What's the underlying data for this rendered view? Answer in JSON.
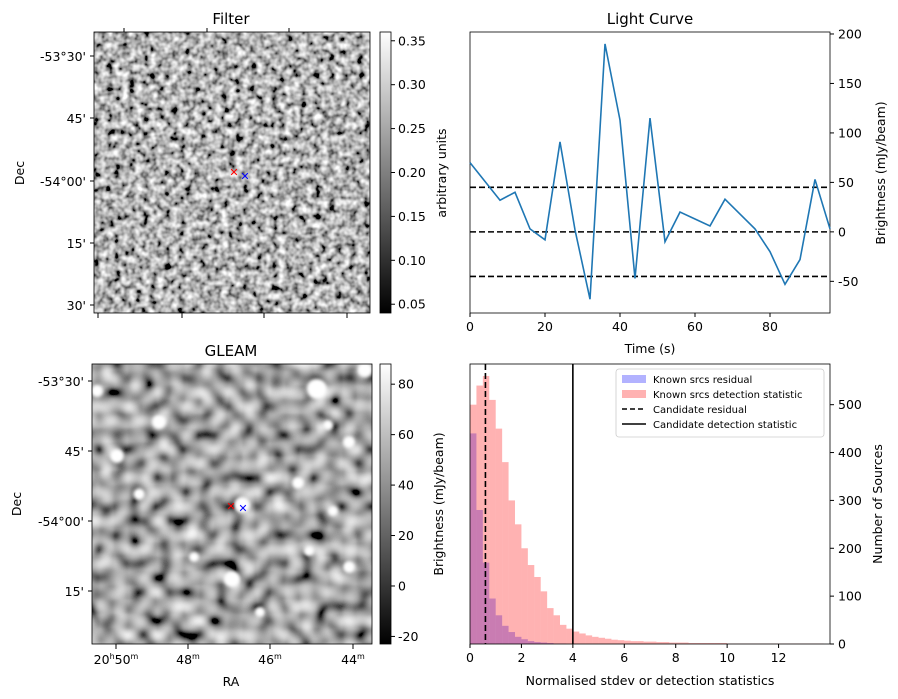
{
  "chart_data": [
    {
      "type": "heatmap",
      "title": "Filter",
      "xlabel": "",
      "ylabel": "Dec",
      "ytick_labels": [
        "-53°30'",
        "45'",
        "-54°00'",
        "15'",
        "30'"
      ],
      "colorbar": {
        "label": "arbitrary units",
        "range": [
          0.04,
          0.36
        ],
        "tick_labels": [
          "0.05",
          "0.10",
          "0.15",
          "0.20",
          "0.25",
          "0.30",
          "0.35"
        ],
        "colormap": "gray"
      },
      "markers": [
        {
          "symbol": "x",
          "color": "#ff0000"
        },
        {
          "symbol": "x",
          "color": "#0000ff"
        }
      ]
    },
    {
      "type": "line",
      "title": "Light Curve",
      "xlabel": "Time (s)",
      "ylabel": "Brightness (mJy/beam)",
      "xlim": [
        0,
        96
      ],
      "ylim": [
        -82,
        202
      ],
      "xtick_labels": [
        "0",
        "20",
        "40",
        "60",
        "80"
      ],
      "ytick_labels": [
        "-50",
        "0",
        "50",
        "100",
        "150",
        "200"
      ],
      "y_axis_side": "right",
      "series": [
        {
          "color": "#1f77b4",
          "x": [
            0,
            8,
            12,
            16,
            20,
            24,
            28,
            32,
            36,
            40,
            44,
            48,
            52,
            56,
            60,
            64,
            68,
            72,
            76,
            80,
            84,
            88,
            92,
            96
          ],
          "y": [
            70,
            32,
            40,
            3,
            -8,
            91,
            2,
            -68,
            190,
            113,
            -47,
            115,
            -10,
            20,
            13,
            6,
            33,
            18,
            3,
            -20,
            -53,
            -28,
            53,
            3
          ]
        }
      ],
      "hlines": [
        {
          "y": 45,
          "style": "dashed",
          "color": "#000000"
        },
        {
          "y": 0,
          "style": "dashed",
          "color": "#000000"
        },
        {
          "y": -45,
          "style": "dashed",
          "color": "#000000"
        }
      ],
      "grid": false
    },
    {
      "type": "heatmap",
      "title": "GLEAM",
      "xlabel": "RA",
      "ylabel": "Dec",
      "xtick_labels": [
        "20h50m",
        "48m",
        "46m",
        "44m"
      ],
      "ytick_labels": [
        "-53°30'",
        "45'",
        "-54°00'",
        "15'"
      ],
      "colorbar": {
        "label": "Brightness (mJy/beam)",
        "range": [
          -23,
          88
        ],
        "tick_labels": [
          "-20",
          "0",
          "20",
          "40",
          "60",
          "80"
        ],
        "colormap": "gray"
      },
      "markers": [
        {
          "symbol": "x",
          "color": "#ff0000"
        },
        {
          "symbol": "x",
          "color": "#0000ff"
        }
      ]
    },
    {
      "type": "bar",
      "subtype": "histogram",
      "title": "",
      "xlabel": "Normalised stdev or detection statistics",
      "ylabel": "Number of Sources",
      "y_axis_side": "right",
      "xlim": [
        0,
        14
      ],
      "ylim": [
        0,
        585
      ],
      "xtick_labels": [
        "0",
        "2",
        "4",
        "6",
        "8",
        "10",
        "12"
      ],
      "ytick_labels": [
        "0",
        "100",
        "200",
        "300",
        "400",
        "500"
      ],
      "legend_position": "top-right",
      "bin_width": 0.25,
      "series": [
        {
          "name": "Known srcs residual",
          "color": "#0000ff",
          "alpha": 0.3,
          "bin_starts": [
            0,
            0.25,
            0.5,
            0.75,
            1.0,
            1.25,
            1.5,
            1.75,
            2.0,
            2.25,
            2.5,
            2.75,
            3.0,
            3.25,
            3.5
          ],
          "counts": [
            440,
            280,
            170,
            95,
            60,
            38,
            25,
            15,
            10,
            6,
            4,
            3,
            2,
            1,
            1
          ]
        },
        {
          "name": "Known srcs detection statistic",
          "color": "#ff0000",
          "alpha": 0.3,
          "bin_starts": [
            0,
            0.25,
            0.5,
            0.75,
            1.0,
            1.25,
            1.5,
            1.75,
            2.0,
            2.25,
            2.5,
            2.75,
            3.0,
            3.25,
            3.5,
            3.75,
            4.0,
            4.25,
            4.5,
            4.75,
            5.0,
            5.25,
            5.5,
            5.75,
            6.0,
            6.25,
            6.5,
            6.75,
            7.0,
            7.25,
            7.5,
            7.75,
            8.0,
            8.25,
            8.5,
            8.75,
            9.0,
            9.25,
            9.5,
            9.75,
            10.0,
            10.25,
            10.5,
            10.75,
            11.0,
            11.25,
            11.5,
            11.75,
            12.0,
            12.25,
            12.5,
            12.75,
            13.0,
            13.25,
            13.5
          ],
          "counts": [
            500,
            540,
            560,
            510,
            450,
            380,
            300,
            250,
            200,
            165,
            140,
            110,
            75,
            60,
            40,
            32,
            26,
            22,
            18,
            15,
            13,
            11,
            9,
            8,
            7,
            6,
            6,
            5,
            5,
            4,
            4,
            3,
            3,
            3,
            2,
            2,
            2,
            2,
            2,
            2,
            1,
            1,
            1,
            1,
            1,
            1,
            1,
            1,
            1,
            1,
            1,
            1,
            1,
            1,
            1
          ]
        }
      ],
      "vlines": [
        {
          "name": "Candidate residual",
          "x": 0.6,
          "style": "dashed",
          "color": "#000000"
        },
        {
          "name": "Candidate detection statistic",
          "x": 4.0,
          "style": "solid",
          "color": "#000000"
        }
      ],
      "secondary_ylabel": "Brightness (mJy/beam)"
    }
  ]
}
